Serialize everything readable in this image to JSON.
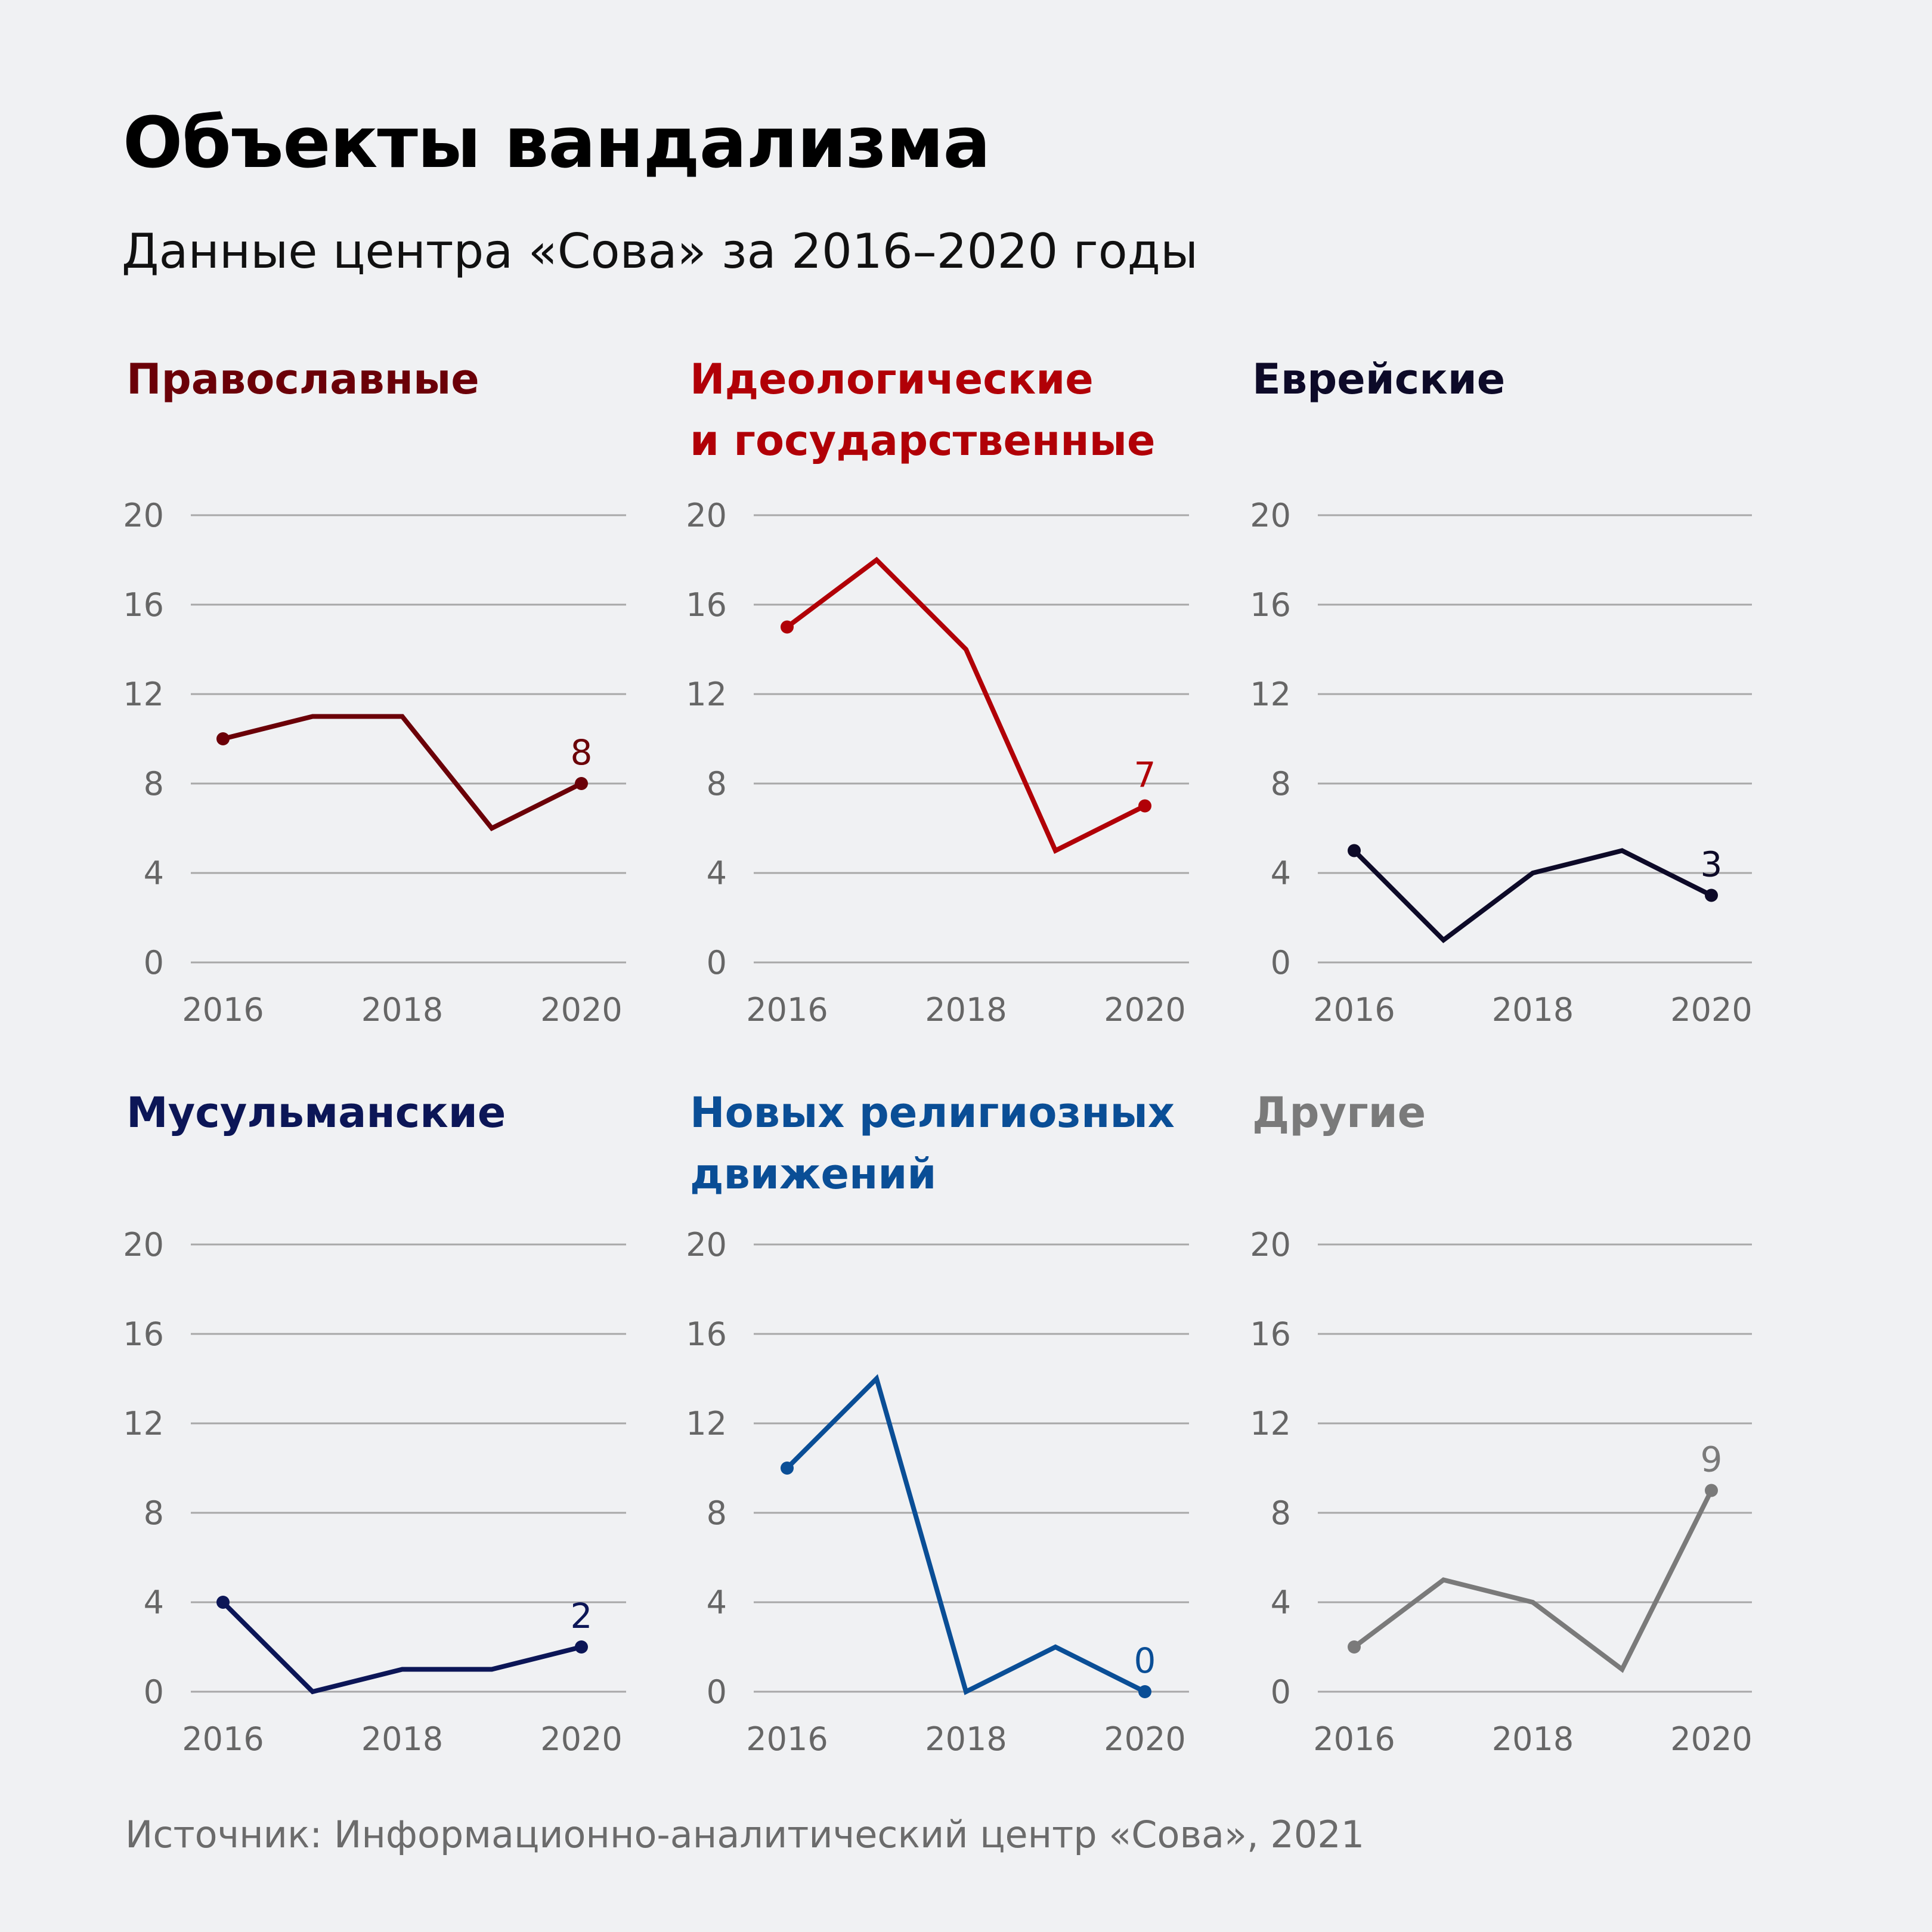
{
  "header": {
    "title": "Объекты вандализма",
    "subtitle": "Данные центра «Сова» за 2016–2020 годы"
  },
  "footer": {
    "source": "Источник: Информационно-аналитический центр «Сова», 2021"
  },
  "chart_data": [
    {
      "type": "line",
      "title_lines": [
        "Православные"
      ],
      "color": "#6b0008",
      "x": [
        2016,
        2017,
        2018,
        2019,
        2020
      ],
      "values": [
        10,
        11,
        11,
        6,
        8
      ],
      "x_tick_labels": [
        "2016",
        "2018",
        "2020"
      ],
      "y_tick_labels": [
        "0",
        "4",
        "8",
        "12",
        "16",
        "20"
      ],
      "ylim": [
        0,
        20
      ],
      "grid": true,
      "end_label": "8"
    },
    {
      "type": "line",
      "title_lines": [
        "Идеологические",
        "и государственные"
      ],
      "color": "#b10007",
      "x": [
        2016,
        2017,
        2018,
        2019,
        2020
      ],
      "values": [
        15,
        18,
        14,
        5,
        7
      ],
      "x_tick_labels": [
        "2016",
        "2018",
        "2020"
      ],
      "y_tick_labels": [
        "0",
        "4",
        "8",
        "12",
        "16",
        "20"
      ],
      "ylim": [
        0,
        20
      ],
      "grid": true,
      "end_label": "7"
    },
    {
      "type": "line",
      "title_lines": [
        "Еврейские"
      ],
      "color": "#0d0a28",
      "x": [
        2016,
        2017,
        2018,
        2019,
        2020
      ],
      "values": [
        5,
        1,
        4,
        5,
        3
      ],
      "x_tick_labels": [
        "2016",
        "2018",
        "2020"
      ],
      "y_tick_labels": [
        "0",
        "4",
        "8",
        "12",
        "16",
        "20"
      ],
      "ylim": [
        0,
        20
      ],
      "grid": true,
      "end_label": "3"
    },
    {
      "type": "line",
      "title_lines": [
        "Мусульманские"
      ],
      "color": "#0c1657",
      "x": [
        2016,
        2017,
        2018,
        2019,
        2020
      ],
      "values": [
        4,
        0,
        1,
        1,
        2
      ],
      "x_tick_labels": [
        "2016",
        "2018",
        "2020"
      ],
      "y_tick_labels": [
        "0",
        "4",
        "8",
        "12",
        "16",
        "20"
      ],
      "ylim": [
        0,
        20
      ],
      "grid": true,
      "end_label": "2"
    },
    {
      "type": "line",
      "title_lines": [
        "Новых религиозных",
        "движений"
      ],
      "color": "#0a4e96",
      "x": [
        2016,
        2017,
        2018,
        2019,
        2020
      ],
      "values": [
        10,
        14,
        0,
        2,
        0
      ],
      "x_tick_labels": [
        "2016",
        "2018",
        "2020"
      ],
      "y_tick_labels": [
        "0",
        "4",
        "8",
        "12",
        "16",
        "20"
      ],
      "ylim": [
        0,
        20
      ],
      "grid": true,
      "end_label": "0"
    },
    {
      "type": "line",
      "title_lines": [
        "Другие"
      ],
      "color": "#7a7a7a",
      "x": [
        2016,
        2017,
        2018,
        2019,
        2020
      ],
      "values": [
        2,
        5,
        4,
        1,
        9
      ],
      "x_tick_labels": [
        "2016",
        "2018",
        "2020"
      ],
      "y_tick_labels": [
        "0",
        "4",
        "8",
        "12",
        "16",
        "20"
      ],
      "ylim": [
        0,
        20
      ],
      "grid": true,
      "end_label": "9"
    }
  ]
}
